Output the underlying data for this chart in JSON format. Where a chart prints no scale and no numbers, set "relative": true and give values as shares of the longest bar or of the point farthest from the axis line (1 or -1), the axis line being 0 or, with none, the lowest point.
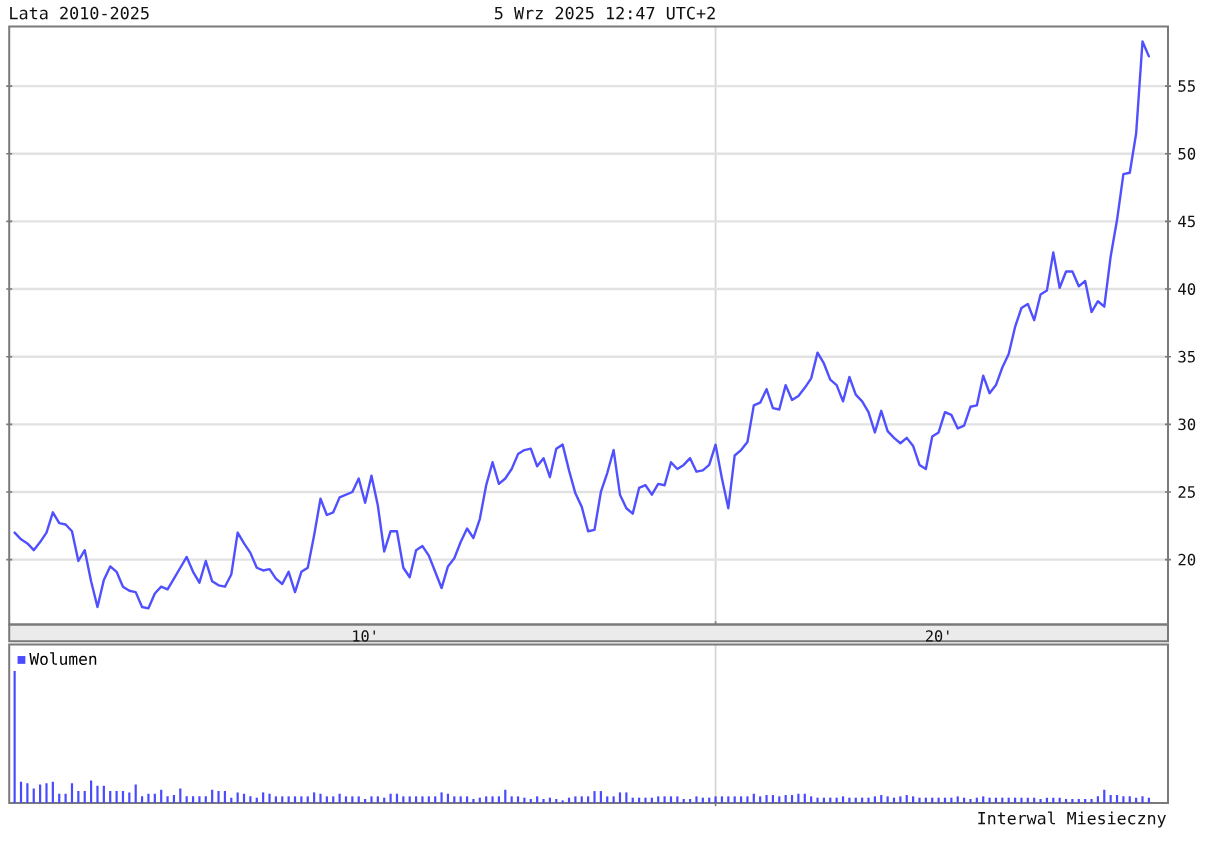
{
  "chart_data": [
    {
      "type": "line",
      "title": "Lata 2010-2025",
      "subtitle": "5 Wrz 2025 12:47 UTC+2",
      "categories": [
        null,
        null,
        null,
        null,
        null,
        null,
        null,
        null,
        null,
        null,
        null,
        null,
        null,
        null,
        null,
        null,
        null,
        null,
        null,
        null,
        null,
        null,
        null,
        null,
        null,
        null,
        null,
        null,
        null,
        null,
        null,
        null,
        null,
        null,
        null,
        null,
        null,
        null,
        null,
        null,
        null,
        null,
        null,
        null,
        null,
        null,
        null,
        null,
        null,
        null,
        null,
        null,
        null,
        null,
        null,
        "10'",
        null,
        null,
        null,
        null,
        null,
        null,
        null,
        null,
        null,
        null,
        null,
        null,
        null,
        null,
        null,
        null,
        null,
        null,
        null,
        null,
        null,
        null,
        null,
        null,
        null,
        null,
        null,
        null,
        null,
        null,
        null,
        null,
        null,
        null,
        null,
        null,
        null,
        null,
        null,
        null,
        null,
        null,
        null,
        null,
        null,
        null,
        null,
        null,
        null,
        null,
        null,
        null,
        null,
        null,
        null,
        null,
        null,
        null,
        null,
        null,
        null,
        null,
        null,
        null,
        null,
        null,
        null,
        null,
        null,
        null,
        null,
        null,
        null,
        null,
        null,
        null,
        null,
        null,
        null,
        null,
        null,
        null,
        null,
        null,
        null,
        null,
        null,
        null,
        null,
        "20'",
        null,
        null,
        null,
        null,
        null,
        null,
        null,
        null,
        null,
        null,
        null,
        null,
        null,
        null,
        null,
        null,
        null,
        null,
        null,
        null,
        null,
        null,
        null,
        null,
        null,
        null,
        null,
        null,
        null,
        null,
        null,
        null,
        null
      ],
      "values": [
        22.0,
        21.5,
        21.2,
        20.7,
        21.3,
        22.0,
        23.5,
        22.7,
        22.6,
        22.1,
        19.9,
        20.7,
        18.4,
        16.5,
        18.5,
        19.5,
        19.1,
        18.0,
        17.7,
        17.6,
        16.5,
        16.4,
        17.5,
        18.0,
        17.8,
        18.6,
        19.4,
        20.2,
        19.1,
        18.3,
        19.9,
        18.4,
        18.1,
        18.0,
        18.9,
        22.0,
        21.2,
        20.5,
        19.4,
        19.2,
        19.3,
        18.6,
        18.2,
        19.1,
        17.6,
        19.1,
        19.4,
        21.8,
        24.5,
        23.3,
        23.5,
        24.6,
        24.8,
        25.0,
        26.0,
        24.2,
        26.2,
        24.0,
        20.6,
        22.1,
        22.1,
        19.4,
        18.7,
        20.7,
        21.0,
        20.3,
        19.1,
        17.9,
        19.5,
        20.1,
        21.3,
        22.3,
        21.6,
        23.0,
        25.5,
        27.2,
        25.6,
        26.0,
        26.7,
        27.8,
        28.1,
        28.2,
        26.9,
        27.5,
        26.1,
        28.2,
        28.5,
        26.6,
        24.9,
        23.9,
        22.1,
        22.2,
        25.0,
        26.4,
        28.1,
        24.8,
        23.8,
        23.4,
        25.3,
        25.5,
        24.8,
        25.6,
        25.5,
        27.2,
        26.7,
        27.0,
        27.5,
        26.5,
        26.6,
        27.0,
        28.5,
        26.0,
        23.8,
        27.7,
        28.1,
        28.7,
        31.4,
        31.6,
        32.6,
        31.2,
        31.1,
        32.9,
        31.8,
        32.1,
        32.7,
        33.4,
        35.3,
        34.5,
        33.3,
        32.9,
        31.7,
        33.5,
        32.2,
        31.7,
        30.9,
        29.4,
        31.0,
        29.5,
        29.0,
        28.6,
        29.0,
        28.4,
        27.0,
        26.7,
        29.1,
        29.4,
        30.9,
        30.7,
        29.7,
        29.9,
        31.3,
        31.4,
        33.6,
        32.3,
        32.9,
        34.2,
        35.2,
        37.2,
        38.6,
        38.9,
        37.7,
        39.6,
        39.9,
        42.7,
        40.1,
        41.3,
        41.3,
        40.2,
        40.6,
        38.3,
        39.1,
        38.7,
        42.4,
        45.1,
        48.5,
        48.6,
        51.5,
        58.3,
        57.2
      ],
      "color": "#5050ff",
      "ylim": [
        15.2,
        59.4
      ],
      "yticks": [
        20,
        25,
        30,
        35,
        40,
        45,
        50,
        55
      ],
      "grid": "y"
    },
    {
      "type": "bar",
      "categories": [
        null,
        null,
        null,
        null,
        null,
        null,
        null,
        null,
        null,
        null,
        null,
        null,
        null,
        null,
        null,
        null,
        null,
        null,
        null,
        null,
        null,
        null,
        null,
        null,
        null,
        null,
        null,
        null,
        null,
        null,
        null,
        null,
        null,
        null,
        null,
        null,
        null,
        null,
        null,
        null,
        null,
        null,
        null,
        null,
        null,
        null,
        null,
        null,
        null,
        null,
        null,
        null,
        null,
        null,
        null,
        null,
        null,
        null,
        null,
        null,
        null,
        null,
        null,
        null,
        null,
        null,
        null,
        null,
        null,
        null,
        null,
        null,
        null,
        null,
        null,
        null,
        null,
        null,
        null,
        null,
        null,
        null,
        null,
        null,
        null,
        null,
        null,
        null,
        null,
        null,
        null,
        null,
        null,
        null,
        null,
        null,
        null,
        null,
        null,
        null,
        null,
        null,
        null,
        null,
        null,
        null,
        null,
        null,
        null,
        null,
        null,
        null,
        null,
        null,
        null,
        null,
        null,
        null,
        null,
        null,
        null,
        null,
        null,
        null,
        null,
        null,
        null,
        null,
        null,
        null,
        null,
        null,
        null,
        null,
        null,
        null,
        null,
        null,
        null,
        null,
        null,
        null,
        null,
        null,
        null,
        null,
        null,
        null,
        null,
        null,
        null,
        null,
        null,
        null,
        null,
        null,
        null,
        null,
        null,
        null,
        null,
        null,
        null,
        null,
        null,
        null,
        null,
        null,
        null,
        null,
        null,
        null,
        null,
        null,
        null,
        null,
        null,
        null,
        null
      ],
      "series": [
        {
          "name": "Wolumen",
          "color": "#4a4aff",
          "values": [
            1,
            0.16,
            0.15,
            0.11,
            0.14,
            0.15,
            0.16,
            0.07,
            0.07,
            0.15,
            0.09,
            0.09,
            0.17,
            0.13,
            0.13,
            0.09,
            0.09,
            0.09,
            0.08,
            0.14,
            0.05,
            0.07,
            0.07,
            0.1,
            0.05,
            0.06,
            0.11,
            0.05,
            0.05,
            0.05,
            0.05,
            0.1,
            0.09,
            0.09,
            0.04,
            0.08,
            0.07,
            0.05,
            0.04,
            0.08,
            0.07,
            0.05,
            0.05,
            0.05,
            0.05,
            0.05,
            0.05,
            0.08,
            0.07,
            0.05,
            0.05,
            0.07,
            0.05,
            0.05,
            0.05,
            0.03,
            0.05,
            0.05,
            0.04,
            0.07,
            0.07,
            0.05,
            0.05,
            0.05,
            0.05,
            0.05,
            0.05,
            0.08,
            0.07,
            0.05,
            0.05,
            0.05,
            0.03,
            0.04,
            0.05,
            0.05,
            0.05,
            0.1,
            0.05,
            0.05,
            0.04,
            0.03,
            0.05,
            0.03,
            0.04,
            0.03,
            0.02,
            0.04,
            0.05,
            0.05,
            0.05,
            0.09,
            0.09,
            0.05,
            0.05,
            0.08,
            0.08,
            0.04,
            0.04,
            0.04,
            0.04,
            0.05,
            0.05,
            0.05,
            0.05,
            0.03,
            0.03,
            0.05,
            0.04,
            0.04,
            0.05,
            0.05,
            0.05,
            0.05,
            0.05,
            0.05,
            0.07,
            0.05,
            0.06,
            0.06,
            0.05,
            0.06,
            0.06,
            0.07,
            0.07,
            0.05,
            0.04,
            0.04,
            0.04,
            0.04,
            0.05,
            0.04,
            0.04,
            0.04,
            0.04,
            0.05,
            0.06,
            0.05,
            0.04,
            0.05,
            0.06,
            0.05,
            0.04,
            0.04,
            0.04,
            0.04,
            0.04,
            0.04,
            0.05,
            0.04,
            0.03,
            0.04,
            0.05,
            0.04,
            0.04,
            0.04,
            0.04,
            0.04,
            0.04,
            0.04,
            0.04,
            0.03,
            0.04,
            0.04,
            0.04,
            0.03,
            0.03,
            0.03,
            0.03,
            0.03,
            0.05,
            0.1,
            0.06,
            0.06,
            0.05,
            0.05,
            0.04,
            0.05,
            0.04
          ]
        }
      ],
      "relative": true,
      "legend": "top left",
      "annotations": [
        "Interwal Miesieczny"
      ]
    }
  ]
}
